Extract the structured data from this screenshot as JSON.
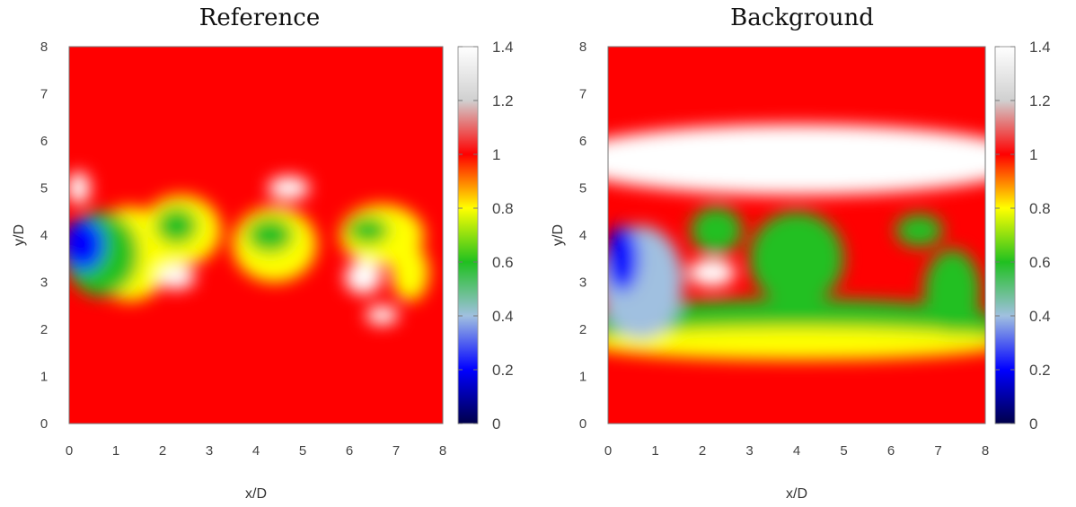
{
  "chart_data": [
    {
      "type": "heatmap",
      "title": "Reference",
      "xlabel": "x/D",
      "ylabel": "y/D",
      "xlim": [
        0,
        8
      ],
      "ylim": [
        0,
        8
      ],
      "xticks": [
        "0",
        "1",
        "2",
        "3",
        "4",
        "5",
        "6",
        "7",
        "8"
      ],
      "yticks": [
        "0",
        "1",
        "2",
        "3",
        "4",
        "5",
        "6",
        "7",
        "8"
      ],
      "colorbar": {
        "range": [
          0,
          1.4
        ],
        "ticks": [
          "0",
          "0.2",
          "0.4",
          "0.6",
          "0.8",
          "1",
          "1.2",
          "1.4"
        ]
      },
      "colormap": [
        "#00004a",
        "#0000ff",
        "#a0c0e0",
        "#20c020",
        "#ffff00",
        "#ff0000",
        "#d0d0d0",
        "#ffffff"
      ],
      "background_value": 1.05,
      "features": [
        {
          "x": 0.3,
          "y": 3.8,
          "value": 0.15,
          "rx": 0.45,
          "ry": 0.55
        },
        {
          "x": 0.7,
          "y": 3.6,
          "value": 0.55,
          "rx": 0.8,
          "ry": 0.9
        },
        {
          "x": 1.3,
          "y": 3.6,
          "value": 0.85,
          "rx": 0.9,
          "ry": 1.0
        },
        {
          "x": 0.2,
          "y": 5.0,
          "value": 1.3,
          "rx": 0.25,
          "ry": 0.35
        },
        {
          "x": 2.3,
          "y": 4.2,
          "value": 0.55,
          "rx": 0.45,
          "ry": 0.4
        },
        {
          "x": 2.4,
          "y": 4.1,
          "value": 0.8,
          "rx": 0.85,
          "ry": 0.75
        },
        {
          "x": 2.3,
          "y": 3.1,
          "value": 1.4,
          "rx": 0.4,
          "ry": 0.25
        },
        {
          "x": 4.3,
          "y": 4.0,
          "value": 0.55,
          "rx": 0.5,
          "ry": 0.38
        },
        {
          "x": 4.4,
          "y": 3.8,
          "value": 0.8,
          "rx": 0.9,
          "ry": 0.8
        },
        {
          "x": 4.7,
          "y": 5.0,
          "value": 1.3,
          "rx": 0.45,
          "ry": 0.25
        },
        {
          "x": 6.4,
          "y": 4.1,
          "value": 0.55,
          "rx": 0.45,
          "ry": 0.3
        },
        {
          "x": 6.7,
          "y": 4.0,
          "value": 0.85,
          "rx": 0.9,
          "ry": 0.65
        },
        {
          "x": 7.3,
          "y": 3.2,
          "value": 0.85,
          "rx": 0.4,
          "ry": 0.6
        },
        {
          "x": 6.3,
          "y": 3.1,
          "value": 1.3,
          "rx": 0.4,
          "ry": 0.35
        },
        {
          "x": 6.7,
          "y": 2.3,
          "value": 1.3,
          "rx": 0.35,
          "ry": 0.2
        }
      ]
    },
    {
      "type": "heatmap",
      "title": "Background",
      "xlabel": "x/D",
      "ylabel": "y/D",
      "xlim": [
        0,
        8
      ],
      "ylim": [
        0,
        8
      ],
      "xticks": [
        "0",
        "1",
        "2",
        "3",
        "4",
        "5",
        "6",
        "7",
        "8"
      ],
      "yticks": [
        "0",
        "1",
        "2",
        "3",
        "4",
        "5",
        "6",
        "7",
        "8"
      ],
      "colorbar": {
        "range": [
          0,
          1.4
        ],
        "ticks": [
          "0",
          "0.2",
          "0.4",
          "0.6",
          "0.8",
          "1",
          "1.2",
          "1.4"
        ]
      },
      "colormap": [
        "#00004a",
        "#0000ff",
        "#a0c0e0",
        "#20c020",
        "#ffff00",
        "#ff0000",
        "#d0d0d0",
        "#ffffff"
      ],
      "background_value": 1.05,
      "features": [
        {
          "x": 4.0,
          "y": 5.6,
          "value": 1.38,
          "rx": 5.0,
          "ry": 0.75
        },
        {
          "x": 4.0,
          "y": 2.1,
          "value": 0.5,
          "rx": 4.5,
          "ry": 0.55
        },
        {
          "x": 4.0,
          "y": 1.7,
          "value": 0.85,
          "rx": 4.5,
          "ry": 0.35
        },
        {
          "x": 0.3,
          "y": 3.5,
          "value": 0.2,
          "rx": 0.35,
          "ry": 0.7
        },
        {
          "x": 0.7,
          "y": 3.0,
          "value": 0.45,
          "rx": 0.9,
          "ry": 1.2
        },
        {
          "x": 2.3,
          "y": 4.1,
          "value": 0.55,
          "rx": 0.55,
          "ry": 0.5
        },
        {
          "x": 2.2,
          "y": 3.2,
          "value": 1.3,
          "rx": 0.5,
          "ry": 0.3
        },
        {
          "x": 4.0,
          "y": 3.5,
          "value": 0.5,
          "rx": 1.0,
          "ry": 1.0
        },
        {
          "x": 6.6,
          "y": 4.1,
          "value": 0.5,
          "rx": 0.5,
          "ry": 0.35
        },
        {
          "x": 7.3,
          "y": 2.8,
          "value": 0.5,
          "rx": 0.6,
          "ry": 0.9
        }
      ]
    }
  ]
}
